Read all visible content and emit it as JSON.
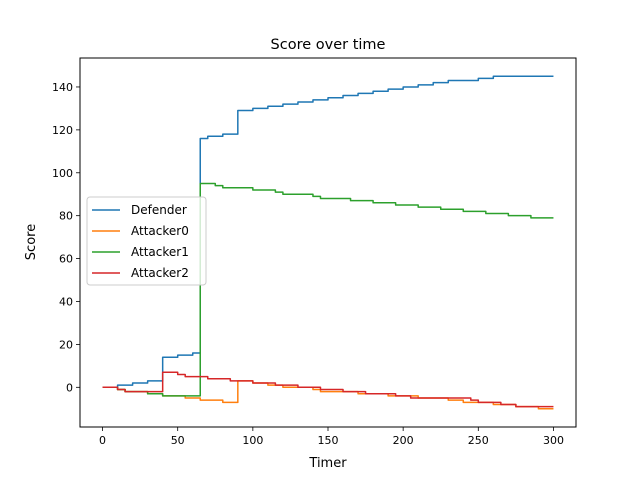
{
  "chart_data": {
    "type": "line",
    "title": "Score over time",
    "xlabel": "Timer",
    "ylabel": "Score",
    "xlim": [
      -15,
      315
    ],
    "ylim": [
      -18.5,
      153.5
    ],
    "xticks": [
      0,
      50,
      100,
      150,
      200,
      250,
      300
    ],
    "yticks": [
      0,
      20,
      40,
      60,
      80,
      100,
      120,
      140
    ],
    "grid": false,
    "legend_position": "center-left",
    "step": true,
    "series": [
      {
        "name": "Defender",
        "color": "#1f77b4",
        "points": [
          [
            0,
            0
          ],
          [
            10,
            1
          ],
          [
            20,
            2
          ],
          [
            30,
            3
          ],
          [
            40,
            14
          ],
          [
            50,
            15
          ],
          [
            60,
            16
          ],
          [
            65,
            116
          ],
          [
            70,
            117
          ],
          [
            80,
            118
          ],
          [
            90,
            129
          ],
          [
            100,
            130
          ],
          [
            110,
            131
          ],
          [
            120,
            132
          ],
          [
            130,
            133
          ],
          [
            140,
            134
          ],
          [
            150,
            135
          ],
          [
            160,
            136
          ],
          [
            170,
            137
          ],
          [
            180,
            138
          ],
          [
            190,
            139
          ],
          [
            200,
            140
          ],
          [
            210,
            141
          ],
          [
            220,
            142
          ],
          [
            230,
            143
          ],
          [
            240,
            143
          ],
          [
            250,
            144
          ],
          [
            260,
            145
          ],
          [
            300,
            145
          ]
        ]
      },
      {
        "name": "Attacker0",
        "color": "#ff7f0e",
        "points": [
          [
            0,
            0
          ],
          [
            10,
            -1
          ],
          [
            15,
            -2
          ],
          [
            30,
            -3
          ],
          [
            40,
            -4
          ],
          [
            55,
            -5
          ],
          [
            65,
            -6
          ],
          [
            80,
            -7
          ],
          [
            90,
            3
          ],
          [
            100,
            2
          ],
          [
            110,
            1
          ],
          [
            120,
            0
          ],
          [
            140,
            -1
          ],
          [
            145,
            -2
          ],
          [
            170,
            -3
          ],
          [
            190,
            -4
          ],
          [
            210,
            -5
          ],
          [
            230,
            -6
          ],
          [
            240,
            -7
          ],
          [
            260,
            -8
          ],
          [
            275,
            -9
          ],
          [
            290,
            -10
          ],
          [
            300,
            -10
          ]
        ]
      },
      {
        "name": "Attacker1",
        "color": "#2ca02c",
        "points": [
          [
            0,
            0
          ],
          [
            10,
            -1
          ],
          [
            15,
            -2
          ],
          [
            30,
            -3
          ],
          [
            40,
            -4
          ],
          [
            65,
            95
          ],
          [
            75,
            94
          ],
          [
            80,
            93
          ],
          [
            100,
            92
          ],
          [
            115,
            91
          ],
          [
            120,
            90
          ],
          [
            140,
            89
          ],
          [
            145,
            88
          ],
          [
            165,
            87
          ],
          [
            180,
            86
          ],
          [
            195,
            85
          ],
          [
            210,
            84
          ],
          [
            225,
            83
          ],
          [
            240,
            82
          ],
          [
            255,
            81
          ],
          [
            270,
            80
          ],
          [
            285,
            79
          ],
          [
            300,
            79
          ]
        ]
      },
      {
        "name": "Attacker2",
        "color": "#d62728",
        "points": [
          [
            0,
            0
          ],
          [
            10,
            -1
          ],
          [
            15,
            -2
          ],
          [
            30,
            -2
          ],
          [
            40,
            7
          ],
          [
            50,
            6
          ],
          [
            55,
            5
          ],
          [
            70,
            4
          ],
          [
            85,
            3
          ],
          [
            100,
            2
          ],
          [
            115,
            1
          ],
          [
            130,
            0
          ],
          [
            145,
            -1
          ],
          [
            160,
            -2
          ],
          [
            175,
            -3
          ],
          [
            195,
            -4
          ],
          [
            205,
            -5
          ],
          [
            225,
            -5
          ],
          [
            245,
            -6
          ],
          [
            250,
            -7
          ],
          [
            265,
            -8
          ],
          [
            275,
            -9
          ],
          [
            300,
            -9
          ]
        ]
      }
    ]
  }
}
